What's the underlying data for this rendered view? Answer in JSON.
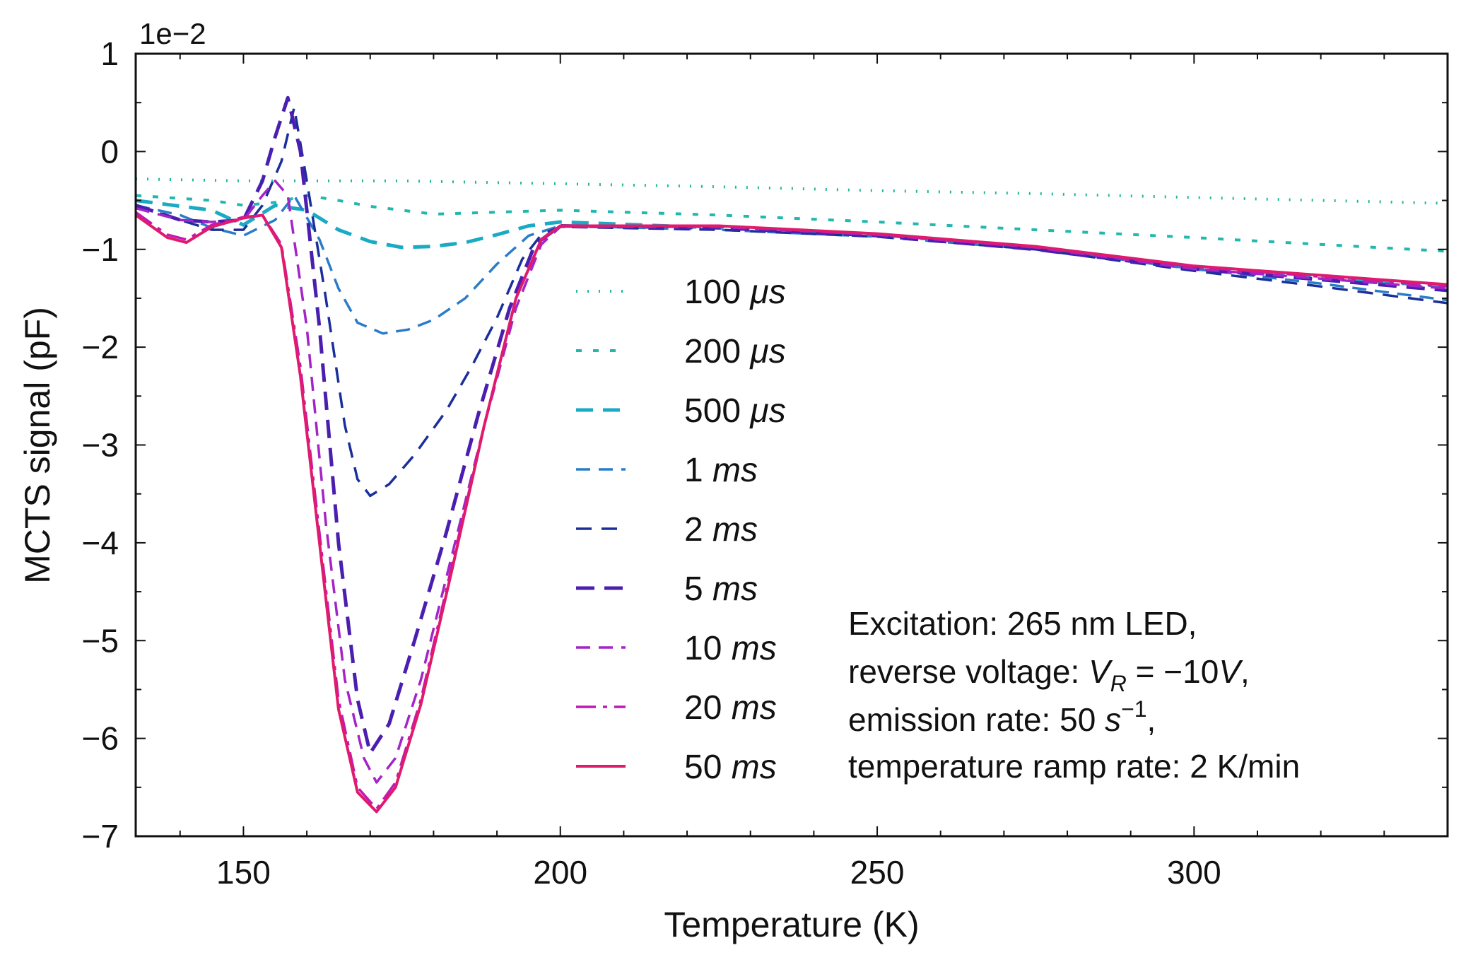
{
  "chart_data": {
    "type": "line",
    "title": "",
    "xlabel": "Temperature (K)",
    "ylabel": "MCTS signal (pF)",
    "y_offset_label": "1e−2",
    "xlim": [
      133,
      340
    ],
    "ylim": [
      -7,
      1
    ],
    "xticks": [
      150,
      200,
      250,
      300
    ],
    "xtick_labels": [
      "150",
      "200",
      "250",
      "300"
    ],
    "yticks": [
      1,
      0,
      -1,
      -2,
      -3,
      -4,
      -5,
      -6,
      -7
    ],
    "ytick_labels": [
      "1",
      "0",
      "−1",
      "−2",
      "−3",
      "−4",
      "−5",
      "−6",
      "−7"
    ],
    "grid": false,
    "legend_position": "center",
    "series": [
      {
        "name": "100 μs",
        "name_num": "100 ",
        "name_unit": "μs",
        "color": "#1fb89a",
        "dash": "2 14",
        "width": 4,
        "points": [
          [
            133,
            -0.28
          ],
          [
            150,
            -0.3
          ],
          [
            175,
            -0.3
          ],
          [
            200,
            -0.33
          ],
          [
            225,
            -0.36
          ],
          [
            250,
            -0.4
          ],
          [
            275,
            -0.43
          ],
          [
            300,
            -0.47
          ],
          [
            340,
            -0.53
          ]
        ]
      },
      {
        "name": "200 μs",
        "name_num": "200 ",
        "name_unit": "μs",
        "color": "#22b8b0",
        "dash": "8 16",
        "width": 4,
        "points": [
          [
            133,
            -0.45
          ],
          [
            145,
            -0.5
          ],
          [
            150,
            -0.55
          ],
          [
            155,
            -0.52
          ],
          [
            160,
            -0.45
          ],
          [
            165,
            -0.5
          ],
          [
            170,
            -0.56
          ],
          [
            180,
            -0.64
          ],
          [
            190,
            -0.62
          ],
          [
            200,
            -0.6
          ],
          [
            225,
            -0.65
          ],
          [
            250,
            -0.72
          ],
          [
            275,
            -0.8
          ],
          [
            300,
            -0.88
          ],
          [
            340,
            -1.02
          ]
        ]
      },
      {
        "name": "500 μs",
        "name_num": "500 ",
        "name_unit": "μs",
        "color": "#19aac4",
        "dash": "24 14",
        "width": 5,
        "points": [
          [
            133,
            -0.5
          ],
          [
            145,
            -0.6
          ],
          [
            150,
            -0.75
          ],
          [
            155,
            -0.55
          ],
          [
            160,
            -0.6
          ],
          [
            165,
            -0.8
          ],
          [
            170,
            -0.92
          ],
          [
            175,
            -0.98
          ],
          [
            180,
            -0.97
          ],
          [
            185,
            -0.93
          ],
          [
            190,
            -0.85
          ],
          [
            195,
            -0.76
          ],
          [
            200,
            -0.72
          ],
          [
            225,
            -0.78
          ],
          [
            250,
            -0.85
          ],
          [
            275,
            -0.98
          ],
          [
            300,
            -1.2
          ],
          [
            340,
            -1.38
          ]
        ]
      },
      {
        "name": "1 ms",
        "name_num": "1 ",
        "name_unit": "ms",
        "color": "#2a7cc8",
        "dash": "20 12",
        "width": 3.5,
        "points": [
          [
            133,
            -0.55
          ],
          [
            140,
            -0.65
          ],
          [
            145,
            -0.78
          ],
          [
            150,
            -0.86
          ],
          [
            155,
            -0.7
          ],
          [
            158,
            -0.45
          ],
          [
            162,
            -0.9
          ],
          [
            165,
            -1.4
          ],
          [
            168,
            -1.75
          ],
          [
            172,
            -1.86
          ],
          [
            176,
            -1.82
          ],
          [
            180,
            -1.72
          ],
          [
            185,
            -1.5
          ],
          [
            190,
            -1.15
          ],
          [
            195,
            -0.86
          ],
          [
            200,
            -0.76
          ],
          [
            225,
            -0.8
          ],
          [
            250,
            -0.87
          ],
          [
            275,
            -1.0
          ],
          [
            300,
            -1.2
          ],
          [
            320,
            -1.35
          ],
          [
            340,
            -1.52
          ]
        ]
      },
      {
        "name": "2 ms",
        "name_num": "2 ",
        "name_unit": "ms",
        "color": "#1a2f9a",
        "dash": "22 14",
        "width": 3.5,
        "points": [
          [
            133,
            -0.55
          ],
          [
            140,
            -0.7
          ],
          [
            145,
            -0.8
          ],
          [
            150,
            -0.8
          ],
          [
            153,
            -0.55
          ],
          [
            156,
            -0.1
          ],
          [
            158,
            0.45
          ],
          [
            160,
            -0.3
          ],
          [
            163,
            -1.5
          ],
          [
            166,
            -2.8
          ],
          [
            168,
            -3.35
          ],
          [
            170,
            -3.52
          ],
          [
            173,
            -3.4
          ],
          [
            177,
            -3.1
          ],
          [
            182,
            -2.65
          ],
          [
            186,
            -2.2
          ],
          [
            190,
            -1.7
          ],
          [
            194,
            -1.1
          ],
          [
            197,
            -0.85
          ],
          [
            200,
            -0.77
          ],
          [
            225,
            -0.8
          ],
          [
            250,
            -0.87
          ],
          [
            275,
            -1.0
          ],
          [
            300,
            -1.22
          ],
          [
            320,
            -1.38
          ],
          [
            340,
            -1.55
          ]
        ]
      },
      {
        "name": "5 ms",
        "name_num": "5 ",
        "name_unit": "ms",
        "color": "#4a1fb0",
        "dash": "26 14",
        "width": 5,
        "points": [
          [
            133,
            -0.55
          ],
          [
            140,
            -0.7
          ],
          [
            145,
            -0.72
          ],
          [
            150,
            -0.7
          ],
          [
            153,
            -0.3
          ],
          [
            155,
            0.15
          ],
          [
            157,
            0.55
          ],
          [
            159,
            0.0
          ],
          [
            162,
            -1.8
          ],
          [
            165,
            -4.0
          ],
          [
            168,
            -5.6
          ],
          [
            170,
            -6.15
          ],
          [
            173,
            -5.85
          ],
          [
            177,
            -5.0
          ],
          [
            182,
            -3.9
          ],
          [
            187,
            -2.7
          ],
          [
            192,
            -1.6
          ],
          [
            196,
            -0.95
          ],
          [
            200,
            -0.76
          ],
          [
            225,
            -0.78
          ],
          [
            250,
            -0.86
          ],
          [
            275,
            -1.0
          ],
          [
            300,
            -1.2
          ],
          [
            340,
            -1.42
          ]
        ]
      },
      {
        "name": "10 ms",
        "name_num": "10 ",
        "name_unit": "ms",
        "color": "#a324c7",
        "dash": "20 12",
        "width": 3.5,
        "points": [
          [
            133,
            -0.58
          ],
          [
            140,
            -0.7
          ],
          [
            145,
            -0.72
          ],
          [
            150,
            -0.7
          ],
          [
            153,
            -0.45
          ],
          [
            155,
            -0.3
          ],
          [
            157,
            -0.45
          ],
          [
            160,
            -1.8
          ],
          [
            163,
            -3.8
          ],
          [
            166,
            -5.4
          ],
          [
            169,
            -6.2
          ],
          [
            171,
            -6.45
          ],
          [
            174,
            -6.2
          ],
          [
            178,
            -5.4
          ],
          [
            183,
            -4.1
          ],
          [
            188,
            -2.8
          ],
          [
            193,
            -1.6
          ],
          [
            197,
            -0.95
          ],
          [
            200,
            -0.77
          ],
          [
            225,
            -0.77
          ],
          [
            250,
            -0.85
          ],
          [
            275,
            -0.98
          ],
          [
            300,
            -1.2
          ],
          [
            340,
            -1.4
          ]
        ]
      },
      {
        "name": "20 ms",
        "name_num": "20 ",
        "name_unit": "ms",
        "color": "#c01ab2",
        "dash": "28 10 6 10",
        "width": 3.5,
        "points": [
          [
            133,
            -0.62
          ],
          [
            138,
            -0.85
          ],
          [
            141,
            -0.9
          ],
          [
            145,
            -0.75
          ],
          [
            150,
            -0.67
          ],
          [
            153,
            -0.65
          ],
          [
            156,
            -0.95
          ],
          [
            159,
            -2.2
          ],
          [
            162,
            -3.9
          ],
          [
            165,
            -5.6
          ],
          [
            168,
            -6.5
          ],
          [
            171,
            -6.72
          ],
          [
            174,
            -6.45
          ],
          [
            178,
            -5.6
          ],
          [
            183,
            -4.2
          ],
          [
            188,
            -2.8
          ],
          [
            193,
            -1.5
          ],
          [
            197,
            -0.9
          ],
          [
            200,
            -0.76
          ],
          [
            225,
            -0.76
          ],
          [
            250,
            -0.85
          ],
          [
            275,
            -0.98
          ],
          [
            300,
            -1.18
          ],
          [
            340,
            -1.38
          ]
        ]
      },
      {
        "name": "50 ms",
        "name_num": "50 ",
        "name_unit": "ms",
        "color": "#e01a6c",
        "dash": "none",
        "width": 4,
        "points": [
          [
            133,
            -0.65
          ],
          [
            138,
            -0.88
          ],
          [
            141,
            -0.93
          ],
          [
            145,
            -0.77
          ],
          [
            150,
            -0.68
          ],
          [
            153,
            -0.65
          ],
          [
            156,
            -0.98
          ],
          [
            159,
            -2.3
          ],
          [
            162,
            -4.0
          ],
          [
            165,
            -5.7
          ],
          [
            168,
            -6.55
          ],
          [
            171,
            -6.75
          ],
          [
            174,
            -6.5
          ],
          [
            178,
            -5.65
          ],
          [
            183,
            -4.25
          ],
          [
            188,
            -2.8
          ],
          [
            193,
            -1.5
          ],
          [
            197,
            -0.9
          ],
          [
            200,
            -0.76
          ],
          [
            225,
            -0.76
          ],
          [
            250,
            -0.84
          ],
          [
            275,
            -0.97
          ],
          [
            300,
            -1.17
          ],
          [
            340,
            -1.36
          ]
        ]
      }
    ],
    "annotation": {
      "line1": "Excitation: 265 nm LED,",
      "line2_prefix": "reverse voltage: ",
      "line2_var": "V",
      "line2_sub": "R",
      "line2_mid": " = −10",
      "line2_unit": "V",
      "line2_suffix": ",",
      "line3_prefix": "emission rate: 50 ",
      "line3_unit": "s",
      "line3_sup": "−1",
      "line3_suffix": ",",
      "line4": "temperature ramp rate: 2 K/min"
    }
  }
}
